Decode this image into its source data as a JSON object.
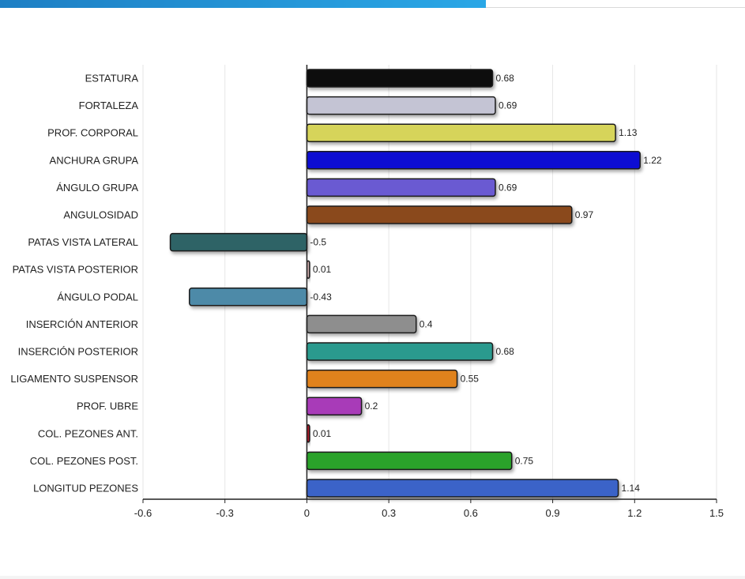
{
  "chart_data": {
    "type": "bar",
    "orientation": "horizontal",
    "title": "",
    "xlabel": "",
    "ylabel": "",
    "xlim": [
      -0.6,
      1.5
    ],
    "xticks": [
      -0.6,
      -0.3,
      0,
      0.3,
      0.6,
      0.9,
      1.2,
      1.5
    ],
    "xtick_labels": [
      "-0.6",
      "-0.3",
      "0",
      "0.3",
      "0.6",
      "0.9",
      "1.2",
      "1.5"
    ],
    "grid": true,
    "legend": "none",
    "categories": [
      "ESTATURA",
      "FORTALEZA",
      "PROF. CORPORAL",
      "ANCHURA GRUPA",
      "ÁNGULO GRUPA",
      "ANGULOSIDAD",
      "PATAS VISTA LATERAL",
      "PATAS VISTA POSTERIOR",
      "ÁNGULO PODAL",
      "INSERCIÓN ANTERIOR",
      "INSERCIÓN POSTERIOR",
      "LIGAMENTO SUSPENSOR",
      "PROF. UBRE",
      "COL. PEZONES ANT.",
      "COL. PEZONES POST.",
      "LONGITUD PEZONES"
    ],
    "values": [
      0.68,
      0.69,
      1.13,
      1.22,
      0.69,
      0.97,
      -0.5,
      0.01,
      -0.43,
      0.4,
      0.68,
      0.55,
      0.2,
      0.01,
      0.75,
      1.14
    ],
    "value_labels": [
      "0.68",
      "0.69",
      "1.13",
      "1.22",
      "0.69",
      "0.97",
      "-0.5",
      "0.01",
      "-0.43",
      "0.4",
      "0.68",
      "0.55",
      "0.2",
      "0.01",
      "0.75",
      "1.14"
    ],
    "colors": [
      "#0a0a0a",
      "#c4c4d4",
      "#d6d45a",
      "#0a0ad2",
      "#6a5ad2",
      "#8a4a1e",
      "#2e6466",
      "#c8a8a8",
      "#4e8aa8",
      "#8e8e8e",
      "#2a9a8e",
      "#e0821e",
      "#a83ab8",
      "#aa1a2a",
      "#2aa22a",
      "#3a64c8"
    ]
  }
}
